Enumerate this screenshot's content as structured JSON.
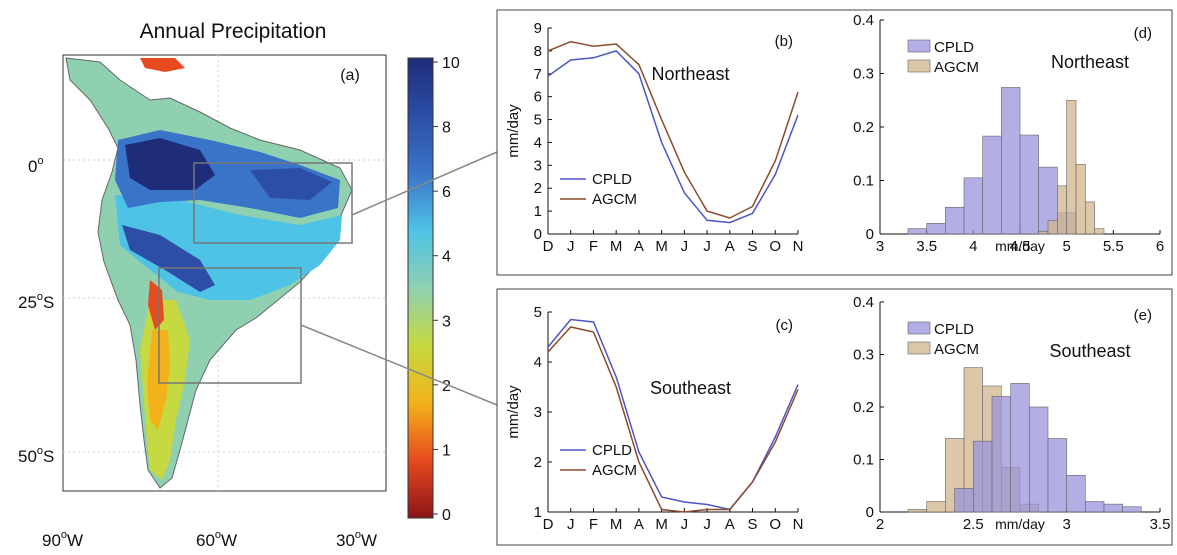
{
  "map": {
    "title": "Annual Precipitation",
    "panel_label": "(a)",
    "lat_labels": [
      {
        "deg": "0",
        "suffix": ""
      },
      {
        "deg": "25",
        "suffix": "S"
      },
      {
        "deg": "50",
        "suffix": "S"
      }
    ],
    "lon_labels": [
      {
        "deg": "90",
        "suffix": "W"
      },
      {
        "deg": "60",
        "suffix": "W"
      },
      {
        "deg": "30",
        "suffix": "W"
      }
    ],
    "colorbar": {
      "ticks": [
        "10",
        "8",
        "6",
        "4",
        "3",
        "2",
        "1",
        "0"
      ],
      "colors": [
        "#1f2c7a",
        "#2c4ea6",
        "#3a74c8",
        "#4ec3e6",
        "#8fd0b0",
        "#c6d940",
        "#f3b21a",
        "#e74a1f",
        "#8a1418"
      ]
    }
  },
  "chart_data": [
    {
      "type": "line",
      "panel": "(b)",
      "annotation": "Northeast",
      "categories": [
        "D",
        "J",
        "F",
        "M",
        "A",
        "M",
        "J",
        "J",
        "A",
        "S",
        "O",
        "N"
      ],
      "series": [
        {
          "name": "CPLD",
          "color": "#4a55c8",
          "values": [
            6.9,
            7.6,
            7.7,
            8.0,
            7.0,
            4.0,
            1.8,
            0.6,
            0.5,
            0.9,
            2.6,
            5.2
          ]
        },
        {
          "name": "AGCM",
          "color": "#8b4a2c",
          "values": [
            8.0,
            8.4,
            8.2,
            8.3,
            7.4,
            5.0,
            2.7,
            1.0,
            0.7,
            1.2,
            3.2,
            6.2
          ]
        }
      ],
      "ylabel": "mm/day",
      "ylim": [
        0,
        9
      ],
      "yticks": [
        "0",
        "1",
        "2",
        "3",
        "4",
        "5",
        "6",
        "7",
        "8",
        "9"
      ],
      "legend": "lower-left"
    },
    {
      "type": "line",
      "panel": "(c)",
      "annotation": "Southeast",
      "categories": [
        "D",
        "J",
        "F",
        "M",
        "A",
        "M",
        "J",
        "J",
        "A",
        "S",
        "O",
        "N"
      ],
      "series": [
        {
          "name": "CPLD",
          "color": "#4a55c8",
          "values": [
            4.3,
            4.85,
            4.8,
            3.7,
            2.2,
            1.3,
            1.2,
            1.15,
            1.05,
            1.6,
            2.5,
            3.55
          ]
        },
        {
          "name": "AGCM",
          "color": "#8b4a2c",
          "values": [
            4.2,
            4.7,
            4.6,
            3.5,
            2.0,
            1.05,
            1.0,
            1.05,
            1.05,
            1.6,
            2.4,
            3.45
          ]
        }
      ],
      "ylabel": "mm/day",
      "ylim": [
        1,
        5
      ],
      "yticks": [
        "1",
        "2",
        "3",
        "4",
        "5"
      ],
      "legend": "lower-left"
    },
    {
      "type": "bar",
      "subtype": "histogram",
      "panel": "(d)",
      "annotation": "Northeast",
      "xlabel": "mm/day",
      "xlim": [
        3,
        6
      ],
      "ylim": [
        0,
        0.4
      ],
      "xticks": [
        "3",
        "3.5",
        "4",
        "4.5",
        "5",
        "5.5",
        "6"
      ],
      "yticks": [
        "0",
        "0.1",
        "0.2",
        "0.3",
        "0.4"
      ],
      "legend": "top-left",
      "series": [
        {
          "name": "CPLD",
          "color": "#9a94dc",
          "bins": [
            {
              "x0": 3.3,
              "x1": 3.5,
              "v": 0.01
            },
            {
              "x0": 3.5,
              "x1": 3.7,
              "v": 0.02
            },
            {
              "x0": 3.7,
              "x1": 3.9,
              "v": 0.05
            },
            {
              "x0": 3.9,
              "x1": 4.1,
              "v": 0.105
            },
            {
              "x0": 4.1,
              "x1": 4.3,
              "v": 0.183
            },
            {
              "x0": 4.3,
              "x1": 4.5,
              "v": 0.274
            },
            {
              "x0": 4.5,
              "x1": 4.7,
              "v": 0.185
            },
            {
              "x0": 4.7,
              "x1": 4.9,
              "v": 0.125
            },
            {
              "x0": 4.9,
              "x1": 5.1,
              "v": 0.04
            }
          ]
        },
        {
          "name": "AGCM",
          "color": "#d2b48c",
          "bins": [
            {
              "x0": 4.7,
              "x1": 4.8,
              "v": 0.005
            },
            {
              "x0": 4.8,
              "x1": 4.9,
              "v": 0.025
            },
            {
              "x0": 4.9,
              "x1": 5.0,
              "v": 0.09
            },
            {
              "x0": 5.0,
              "x1": 5.1,
              "v": 0.25
            },
            {
              "x0": 5.1,
              "x1": 5.2,
              "v": 0.13
            },
            {
              "x0": 5.2,
              "x1": 5.3,
              "v": 0.06
            },
            {
              "x0": 5.3,
              "x1": 5.4,
              "v": 0.01
            }
          ]
        }
      ]
    },
    {
      "type": "bar",
      "subtype": "histogram",
      "panel": "(e)",
      "annotation": "Southeast",
      "xlabel": "mm/day",
      "xlim": [
        2,
        3.5
      ],
      "ylim": [
        0,
        0.4
      ],
      "xticks": [
        "2",
        "2.5",
        "3",
        "3.5"
      ],
      "yticks": [
        "0",
        "0.1",
        "0.2",
        "0.3",
        "0.4"
      ],
      "legend": "top-left",
      "series": [
        {
          "name": "AGCM",
          "color": "#d2b48c",
          "bins": [
            {
              "x0": 2.15,
              "x1": 2.25,
              "v": 0.005
            },
            {
              "x0": 2.25,
              "x1": 2.35,
              "v": 0.02
            },
            {
              "x0": 2.35,
              "x1": 2.45,
              "v": 0.14
            },
            {
              "x0": 2.45,
              "x1": 2.55,
              "v": 0.275
            },
            {
              "x0": 2.55,
              "x1": 2.65,
              "v": 0.24
            },
            {
              "x0": 2.65,
              "x1": 2.75,
              "v": 0.085
            },
            {
              "x0": 2.75,
              "x1": 2.85,
              "v": 0.015
            }
          ]
        },
        {
          "name": "CPLD",
          "color": "#9a94dc",
          "bins": [
            {
              "x0": 2.4,
              "x1": 2.5,
              "v": 0.045
            },
            {
              "x0": 2.5,
              "x1": 2.6,
              "v": 0.135
            },
            {
              "x0": 2.6,
              "x1": 2.7,
              "v": 0.22
            },
            {
              "x0": 2.7,
              "x1": 2.8,
              "v": 0.245
            },
            {
              "x0": 2.8,
              "x1": 2.9,
              "v": 0.2
            },
            {
              "x0": 2.9,
              "x1": 3.0,
              "v": 0.14
            },
            {
              "x0": 3.0,
              "x1": 3.1,
              "v": 0.07
            },
            {
              "x0": 3.1,
              "x1": 3.2,
              "v": 0.02
            },
            {
              "x0": 3.2,
              "x1": 3.3,
              "v": 0.015
            },
            {
              "x0": 3.3,
              "x1": 3.4,
              "v": 0.01
            }
          ]
        }
      ]
    }
  ]
}
